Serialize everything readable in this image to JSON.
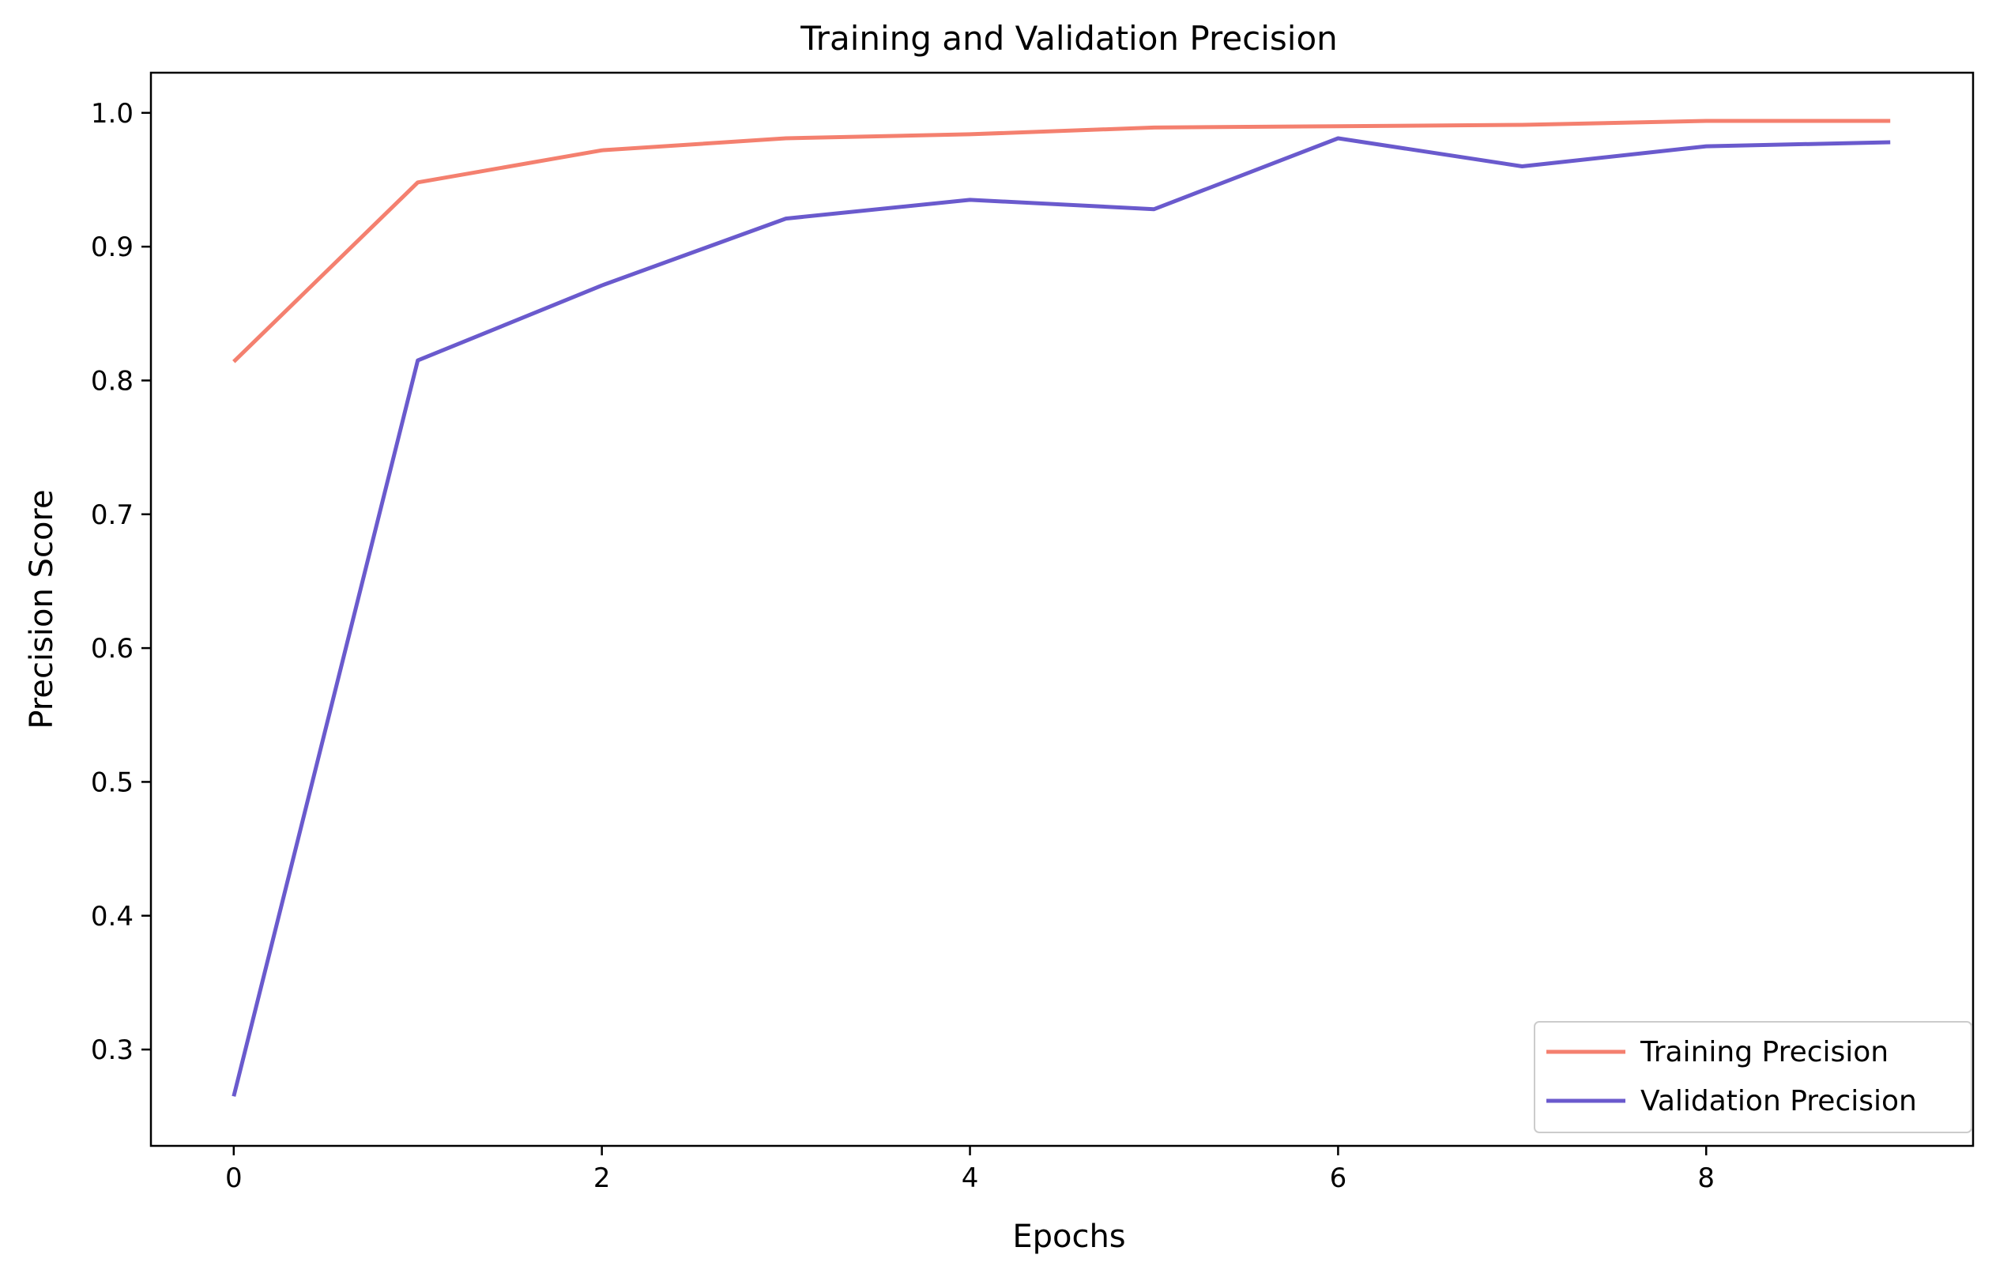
{
  "chart_data": {
    "type": "line",
    "title": "Training and Validation Precision",
    "xlabel": "Epochs",
    "ylabel": "Precision Score",
    "x": [
      0,
      1,
      2,
      3,
      4,
      5,
      6,
      7,
      8,
      9
    ],
    "xlim": [
      -0.45,
      9.45
    ],
    "ylim": [
      0.228,
      1.03
    ],
    "xticks": [
      0,
      2,
      4,
      6,
      8
    ],
    "xtick_labels": [
      "0",
      "2",
      "4",
      "6",
      "8"
    ],
    "yticks": [
      0.3,
      0.4,
      0.5,
      0.6,
      0.7,
      0.8,
      0.9,
      1.0
    ],
    "ytick_labels": [
      "0.3",
      "0.4",
      "0.5",
      "0.6",
      "0.7",
      "0.8",
      "0.9",
      "1.0"
    ],
    "grid": false,
    "legend_position": "lower-right",
    "series": [
      {
        "name": "Training Precision",
        "color": "#f4806f",
        "values": [
          0.814,
          0.948,
          0.972,
          0.981,
          0.984,
          0.989,
          0.99,
          0.991,
          0.994,
          0.994
        ]
      },
      {
        "name": "Validation Precision",
        "color": "#6a5acd",
        "values": [
          0.265,
          0.815,
          0.871,
          0.921,
          0.935,
          0.928,
          0.981,
          0.96,
          0.975,
          0.978
        ]
      }
    ]
  }
}
